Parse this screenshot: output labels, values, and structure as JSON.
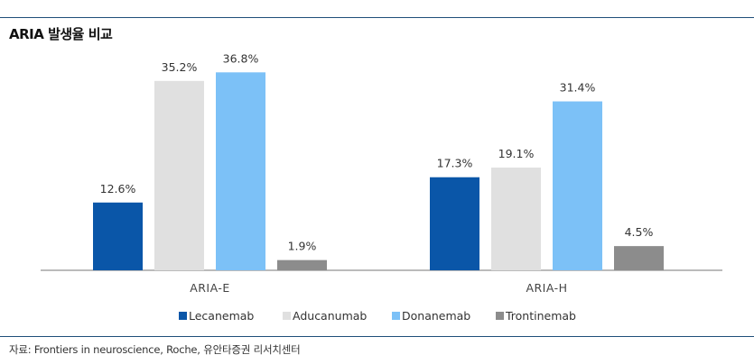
{
  "header": {
    "title": "ARIA 발생율 비교"
  },
  "footer": {
    "source": "자료: Frontiers in neuroscience, Roche, 유안타증권 리서치센터"
  },
  "chart_data": {
    "type": "bar",
    "title": "ARIA 발생율 비교",
    "categories": [
      "ARIA-E",
      "ARIA-H"
    ],
    "series": [
      {
        "name": "Lecanemab",
        "color": "#0a56a8",
        "values": [
          12.6,
          17.3
        ],
        "labels": [
          "12.6%",
          "17.3%"
        ]
      },
      {
        "name": "Aducanumab",
        "color": "#e0e0e0",
        "values": [
          35.2,
          19.1
        ],
        "labels": [
          "35.2%",
          "19.1%"
        ]
      },
      {
        "name": "Donanemab",
        "color": "#7cc1f7",
        "values": [
          36.8,
          31.4
        ],
        "labels": [
          "36.8%",
          "31.4%"
        ]
      },
      {
        "name": "Trontinemab",
        "color": "#8c8c8c",
        "values": [
          1.9,
          4.5
        ],
        "labels": [
          "1.9%",
          "4.5%"
        ]
      }
    ],
    "ylim": [
      0,
      40
    ],
    "unit": "%",
    "legend_position": "bottom",
    "grid": false
  }
}
